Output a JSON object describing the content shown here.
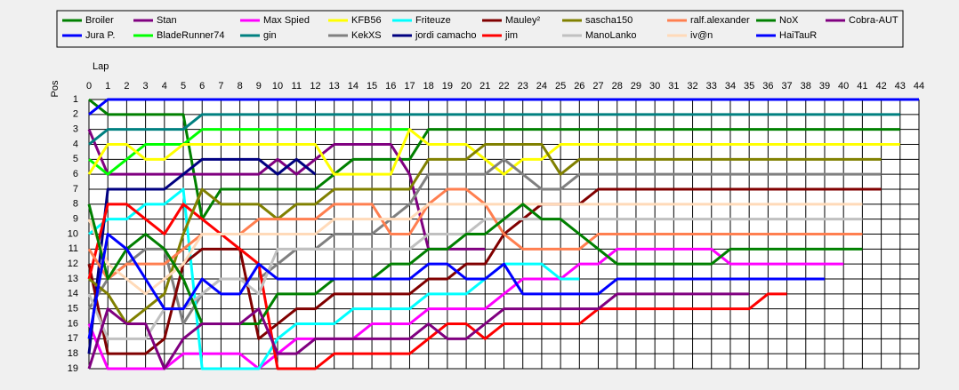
{
  "chart_data": {
    "type": "line",
    "x_label": "Lap",
    "y_label": "Pos",
    "x": [
      0,
      1,
      2,
      3,
      4,
      5,
      6,
      7,
      8,
      9,
      10,
      11,
      12,
      13,
      14,
      15,
      16,
      17,
      18,
      19,
      20,
      21,
      22,
      23,
      24,
      25,
      26,
      27,
      28,
      29,
      30,
      31,
      32,
      33,
      34,
      35,
      36,
      37,
      38,
      39,
      40,
      41,
      42,
      43,
      44
    ],
    "xlim": [
      0,
      44
    ],
    "xticks": [
      0,
      1,
      2,
      3,
      4,
      5,
      6,
      7,
      8,
      9,
      10,
      11,
      12,
      13,
      14,
      15,
      16,
      17,
      18,
      19,
      20,
      21,
      22,
      23,
      24,
      25,
      26,
      27,
      28,
      29,
      30,
      31,
      32,
      33,
      34,
      35,
      36,
      37,
      38,
      39,
      40,
      41,
      42,
      43,
      44
    ],
    "ylim": [
      1,
      19
    ],
    "y_inverted": true,
    "yticks": [
      1,
      2,
      3,
      4,
      5,
      6,
      7,
      8,
      9,
      10,
      11,
      12,
      13,
      14,
      15,
      16,
      17,
      18,
      19
    ],
    "grid": true,
    "legend": "top",
    "series": [
      {
        "name": "Broiler",
        "color": "#008000",
        "values": [
          1,
          2,
          2,
          2,
          2,
          2,
          9,
          7,
          7,
          7,
          7,
          7,
          7,
          6,
          5,
          5,
          5,
          5,
          3,
          3,
          3,
          3,
          3,
          3,
          3,
          3,
          3,
          3,
          3,
          3,
          3,
          3,
          3,
          3,
          3,
          3,
          3,
          3,
          3,
          3,
          3,
          3,
          3,
          3,
          null
        ]
      },
      {
        "name": "Jura P.",
        "color": "#0000ff",
        "values": [
          2,
          1,
          1,
          1,
          1,
          1,
          1,
          1,
          1,
          1,
          1,
          1,
          1,
          1,
          1,
          1,
          1,
          1,
          1,
          1,
          1,
          1,
          1,
          1,
          1,
          1,
          1,
          1,
          1,
          1,
          1,
          1,
          1,
          1,
          1,
          1,
          1,
          1,
          1,
          1,
          1,
          1,
          1,
          1,
          1
        ]
      },
      {
        "name": "Stan",
        "color": "#800080",
        "values": [
          3,
          6,
          6,
          6,
          6,
          6,
          6,
          6,
          6,
          6,
          5,
          6,
          5,
          4,
          4,
          4,
          4,
          6,
          11,
          11,
          11,
          11,
          null,
          null,
          null,
          null,
          null,
          null,
          null,
          null,
          null,
          null,
          null,
          null,
          null,
          null,
          null,
          null,
          null,
          null,
          null,
          null,
          null,
          null,
          null
        ]
      },
      {
        "name": "BladeRunner74",
        "color": "#00ff00",
        "values": [
          5,
          6,
          5,
          4,
          4,
          4,
          3,
          3,
          3,
          3,
          3,
          3,
          3,
          3,
          3,
          3,
          3,
          3,
          null,
          null,
          null,
          null,
          null,
          null,
          null,
          null,
          null,
          null,
          null,
          null,
          null,
          null,
          null,
          null,
          null,
          null,
          null,
          null,
          null,
          null,
          null,
          null,
          null,
          null,
          null
        ]
      },
      {
        "name": "Max Spied",
        "color": "#ff00ff",
        "values": [
          16,
          19,
          19,
          19,
          19,
          18,
          18,
          18,
          18,
          19,
          18,
          17,
          17,
          17,
          17,
          16,
          16,
          16,
          15,
          15,
          15,
          15,
          14,
          13,
          13,
          13,
          12,
          12,
          11,
          11,
          11,
          11,
          11,
          11,
          12,
          12,
          12,
          12,
          12,
          12,
          12,
          null,
          null,
          null,
          null
        ]
      },
      {
        "name": "gin",
        "color": "#008080",
        "values": [
          4,
          3,
          3,
          3,
          3,
          3,
          2,
          2,
          2,
          2,
          2,
          2,
          2,
          2,
          2,
          2,
          2,
          2,
          2,
          2,
          2,
          2,
          2,
          2,
          2,
          2,
          2,
          2,
          2,
          2,
          2,
          2,
          2,
          2,
          2,
          2,
          2,
          2,
          2,
          2,
          2,
          2,
          2,
          2,
          null
        ]
      },
      {
        "name": "KFB56",
        "color": "#ffff00",
        "values": [
          6,
          4,
          4,
          5,
          5,
          4,
          4,
          4,
          4,
          4,
          4,
          4,
          4,
          6,
          6,
          6,
          6,
          3,
          4,
          4,
          4,
          5,
          6,
          5,
          5,
          4,
          4,
          4,
          4,
          4,
          4,
          4,
          4,
          4,
          4,
          4,
          4,
          4,
          4,
          4,
          4,
          4,
          4,
          4,
          null
        ]
      },
      {
        "name": "KekXS",
        "color": "#808080",
        "values": [
          15,
          13,
          12,
          11,
          11,
          16,
          14,
          13,
          13,
          13,
          12,
          11,
          11,
          10,
          10,
          10,
          9,
          8,
          6,
          6,
          6,
          6,
          5,
          6,
          7,
          7,
          6,
          6,
          6,
          6,
          6,
          6,
          6,
          6,
          6,
          6,
          6,
          6,
          6,
          6,
          6,
          6,
          6,
          null,
          null
        ]
      },
      {
        "name": "Friteuze",
        "color": "#00ffff",
        "values": [
          10,
          9,
          9,
          8,
          8,
          7,
          19,
          19,
          19,
          19,
          17,
          16,
          16,
          16,
          15,
          15,
          15,
          15,
          14,
          14,
          14,
          13,
          12,
          12,
          12,
          13,
          13,
          null,
          null,
          null,
          null,
          null,
          null,
          null,
          null,
          null,
          null,
          null,
          null,
          null,
          null,
          null,
          null,
          null,
          null
        ]
      },
      {
        "name": "jordi camacho",
        "color": "#000080",
        "values": [
          18,
          7,
          7,
          7,
          7,
          6,
          5,
          5,
          5,
          5,
          6,
          5,
          6,
          null,
          null,
          null,
          null,
          null,
          null,
          null,
          null,
          null,
          null,
          null,
          null,
          null,
          null,
          null,
          null,
          null,
          null,
          null,
          null,
          null,
          null,
          null,
          null,
          null,
          null,
          null,
          null,
          null,
          null,
          null,
          null
        ]
      },
      {
        "name": "Mauley²",
        "color": "#800000",
        "values": [
          12,
          18,
          18,
          18,
          17,
          12,
          11,
          11,
          11,
          17,
          16,
          15,
          15,
          14,
          14,
          14,
          14,
          14,
          13,
          13,
          12,
          12,
          10,
          9,
          8,
          8,
          8,
          7,
          7,
          7,
          7,
          7,
          7,
          7,
          7,
          7,
          7,
          7,
          7,
          7,
          7,
          7,
          7,
          null,
          null
        ]
      },
      {
        "name": "jim",
        "color": "#ff0000",
        "values": [
          13,
          8,
          8,
          9,
          10,
          8,
          9,
          10,
          11,
          12,
          19,
          19,
          19,
          18,
          18,
          18,
          18,
          18,
          17,
          16,
          16,
          17,
          16,
          16,
          16,
          16,
          16,
          15,
          15,
          15,
          15,
          15,
          15,
          15,
          15,
          15,
          14,
          14,
          null,
          null,
          null,
          null,
          null,
          null,
          null
        ]
      },
      {
        "name": "sascha150",
        "color": "#808000",
        "values": [
          13,
          14,
          16,
          15,
          14,
          10,
          7,
          8,
          8,
          8,
          9,
          8,
          8,
          7,
          7,
          7,
          7,
          7,
          5,
          5,
          5,
          4,
          4,
          4,
          4,
          6,
          5,
          5,
          5,
          5,
          5,
          5,
          5,
          5,
          5,
          5,
          5,
          5,
          5,
          5,
          5,
          5,
          5,
          null,
          null
        ]
      },
      {
        "name": "ManoLanko",
        "color": "#c0c0c0",
        "values": [
          14,
          17,
          17,
          17,
          15,
          15,
          14,
          13,
          13,
          14,
          11,
          11,
          11,
          11,
          11,
          11,
          11,
          11,
          10,
          10,
          10,
          9,
          9,
          9,
          9,
          9,
          9,
          9,
          9,
          9,
          9,
          9,
          9,
          9,
          9,
          9,
          9,
          9,
          9,
          9,
          9,
          9,
          null,
          null,
          null
        ]
      },
      {
        "name": "ralf.alexander",
        "color": "#ff7f50",
        "values": [
          11,
          13,
          12,
          12,
          12,
          11,
          10,
          10,
          10,
          9,
          9,
          9,
          9,
          8,
          8,
          8,
          10,
          10,
          8,
          7,
          7,
          8,
          10,
          11,
          11,
          11,
          11,
          10,
          10,
          10,
          10,
          10,
          10,
          10,
          10,
          10,
          10,
          10,
          10,
          10,
          10,
          10,
          null,
          null,
          null
        ]
      },
      {
        "name": "iv@n",
        "color": "#ffdab9",
        "values": [
          9,
          12,
          13,
          14,
          13,
          12,
          10,
          10,
          10,
          10,
          10,
          10,
          10,
          9,
          9,
          9,
          9,
          9,
          8,
          8,
          8,
          8,
          8,
          8,
          8,
          8,
          8,
          8,
          8,
          8,
          8,
          8,
          8,
          8,
          8,
          8,
          8,
          8,
          8,
          8,
          8,
          8,
          null,
          null,
          null
        ]
      },
      {
        "name": "NoX",
        "color": "#008000",
        "values": [
          8,
          13,
          11,
          10,
          11,
          13,
          16,
          16,
          16,
          16,
          14,
          14,
          14,
          13,
          13,
          13,
          12,
          12,
          11,
          11,
          10,
          10,
          9,
          8,
          9,
          9,
          10,
          11,
          12,
          12,
          12,
          12,
          12,
          12,
          11,
          11,
          11,
          11,
          11,
          11,
          11,
          11,
          null,
          null,
          null
        ]
      },
      {
        "name": "HaiTauR",
        "color": "#0000ff",
        "values": [
          17,
          10,
          11,
          13,
          15,
          15,
          13,
          14,
          14,
          12,
          13,
          13,
          13,
          13,
          13,
          13,
          13,
          13,
          12,
          12,
          13,
          13,
          12,
          14,
          14,
          14,
          14,
          14,
          13,
          13,
          13,
          13,
          13,
          13,
          13,
          13,
          13,
          13,
          13,
          13,
          null,
          null,
          null,
          null,
          null
        ]
      },
      {
        "name": "Cobra-AUT",
        "color": "#800080",
        "values": [
          19,
          15,
          16,
          16,
          19,
          17,
          16,
          16,
          16,
          15,
          18,
          18,
          17,
          17,
          17,
          17,
          17,
          17,
          16,
          17,
          17,
          16,
          15,
          15,
          15,
          15,
          15,
          15,
          14,
          14,
          14,
          14,
          14,
          14,
          14,
          14,
          null,
          null,
          null,
          null,
          null,
          null,
          null,
          null,
          null
        ]
      }
    ]
  }
}
